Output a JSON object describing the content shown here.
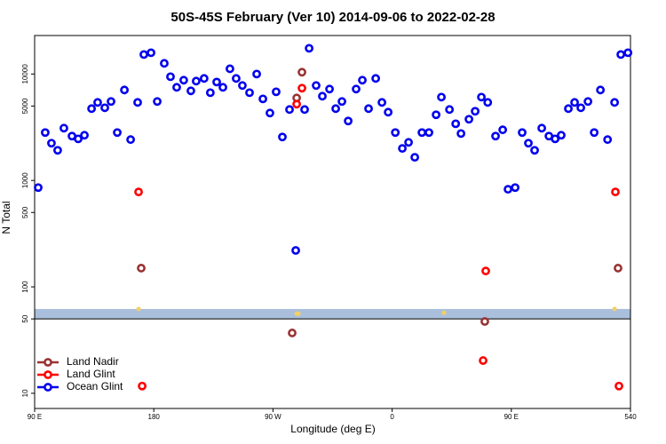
{
  "chart_data": {
    "type": "scatter",
    "title": "50S-45S February (Ver 10)   2014-09-06 to 2022-02-28",
    "x_label": "Longitude (deg E)",
    "y_label": "N Total",
    "log_y": true,
    "legend": "lower left",
    "xlim": [
      90,
      540
    ],
    "ylim": [
      7.2,
      23000
    ],
    "xticks": [
      {
        "value": 90,
        "label": "90 E"
      },
      180,
      {
        "value": 270,
        "label": "90 W"
      },
      {
        "value": 360,
        "label": "0"
      },
      {
        "value": 450,
        "label": "90 E"
      },
      540
    ],
    "yticks": [
      10,
      50,
      100,
      500,
      1000,
      5000,
      10000
    ],
    "band": [
      50,
      62
    ],
    "band_color": "#a9bfdc",
    "reference_line": 50,
    "stars": {
      "color": "#f5d060",
      "x": [
        168.5,
        287.9,
        289.2,
        399.2,
        528.0
      ],
      "y": [
        62,
        56,
        56,
        57,
        62
      ]
    },
    "series": [
      {
        "name": "Land Nadir",
        "color": "#993333",
        "x": [
          170.5,
          287.9,
          291.9,
          284.5,
          430.0,
          530.6
        ],
        "values": [
          150,
          5960,
          10400,
          36.9,
          47.3,
          150
        ]
      },
      {
        "name": "Land Glint",
        "color": "#ff0000",
        "x": [
          168.5,
          171.2,
          287.9,
          291.9,
          428.7,
          430.7,
          528.6,
          531.3
        ],
        "values": [
          780,
          11.7,
          5210,
          7360,
          20.3,
          141,
          780,
          11.7
        ]
      },
      {
        "name": "Ocean Glint",
        "color": "#0000ee",
        "x": [
          92.7,
          98,
          102.7,
          107.4,
          112.1,
          118.2,
          122.9,
          127.6,
          133,
          137.6,
          143,
          147.7,
          152.4,
          157.8,
          162.5,
          167.8,
          172.5,
          177.9,
          182.6,
          187.9,
          192.6,
          197.3,
          202.6,
          208,
          212,
          218,
          222.7,
          227.5,
          232.2,
          237.5,
          242.2,
          246.9,
          252.3,
          257.7,
          262.4,
          267.7,
          272.4,
          277.1,
          282.5,
          287.2,
          293.9,
          297.3,
          302.6,
          307.3,
          312.7,
          317.4,
          322.1,
          326.8,
          332.8,
          337.5,
          342.2,
          347.6,
          352.3,
          357,
          362.4,
          367.7,
          372.4,
          377.1,
          382.5,
          387.8,
          393.2,
          397.2,
          403.3,
          408,
          412,
          418,
          422.7,
          427.4,
          432.2,
          438.1,
          443.5,
          447.5,
          452.9,
          458.2,
          462.9,
          467.6,
          473,
          478.4,
          483.1,
          487.7,
          493.1,
          497.8,
          502.5,
          507.9,
          512.6,
          517.3,
          522.7,
          528,
          532.7,
          538.1
        ],
        "values": [
          857,
          2820,
          2240,
          1920,
          3100,
          2610,
          2460,
          2660,
          4730,
          5410,
          4820,
          5520,
          2820,
          7080,
          2420,
          5410,
          15250,
          15850,
          5520,
          12600,
          9440,
          7500,
          8750,
          6950,
          8580,
          9090,
          6680,
          8410,
          7500,
          11200,
          9090,
          7800,
          6680,
          10000,
          5840,
          4300,
          6810,
          2560,
          4640,
          220,
          4640,
          17450,
          7800,
          6190,
          7220,
          4730,
          5520,
          3620,
          7220,
          8750,
          4730,
          9090,
          5410,
          4380,
          2820,
          2000,
          2280,
          1650,
          2820,
          2820,
          4140,
          6070,
          4640,
          3410,
          2760,
          3760,
          4470,
          6070,
          5410,
          2610,
          2990,
          826,
          857,
          2820,
          2240,
          1920,
          3100,
          2610,
          2460,
          2660,
          4730,
          5410,
          4820,
          5520,
          2820,
          7080,
          2420,
          5410,
          15250,
          15850
        ]
      }
    ]
  }
}
